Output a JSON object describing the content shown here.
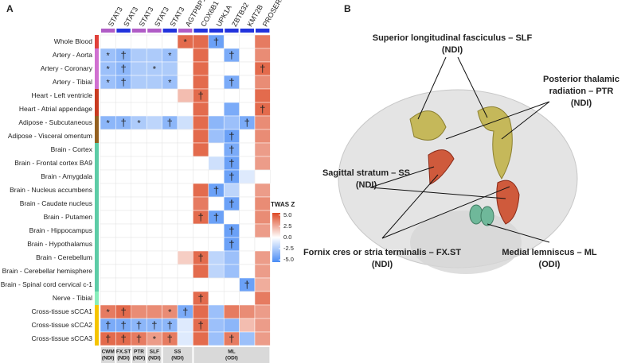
{
  "chart_data": {
    "type": "heatmap",
    "panel": "A",
    "columns": [
      {
        "name": "STAT3",
        "color": "#b05cc6"
      },
      {
        "name": "STAT3",
        "color": "#2233dd"
      },
      {
        "name": "STAT3",
        "color": "#b05cc6"
      },
      {
        "name": "STAT3",
        "color": "#b05cc6"
      },
      {
        "name": "STAT3",
        "color": "#2233dd"
      },
      {
        "name": "AGTPBP1",
        "color": "#b05cc6"
      },
      {
        "name": "COX6B1",
        "color": "#2233dd"
      },
      {
        "name": "UPK1A",
        "color": "#2233dd"
      },
      {
        "name": "ZBTB32",
        "color": "#2233dd"
      },
      {
        "name": "KMT2B",
        "color": "#2233dd"
      },
      {
        "name": "PROSER3",
        "color": "#2233dd"
      }
    ],
    "groups": [
      {
        "name": "CWM",
        "measure": "(NDI)",
        "span": 1
      },
      {
        "name": "FX.ST",
        "measure": "(NDI)",
        "span": 1
      },
      {
        "name": "PTR",
        "measure": "(NDI)",
        "span": 1
      },
      {
        "name": "SLF",
        "measure": "(NDI)",
        "span": 1
      },
      {
        "name": "SS",
        "measure": "(NDI)",
        "span": 2
      },
      {
        "name": "ML",
        "measure": "(ODI)",
        "span": 5
      }
    ],
    "rows": [
      {
        "name": "Whole Blood",
        "color": "#e0403a",
        "values": [
          null,
          null,
          null,
          null,
          null,
          4.5,
          4.5,
          -4.5,
          null,
          null,
          4.0
        ],
        "marks": [
          null,
          null,
          null,
          null,
          null,
          "*",
          null,
          "†",
          null,
          null,
          null
        ]
      },
      {
        "name": "Artery - Aorta",
        "color": "#d070d0",
        "values": [
          -3,
          -3.5,
          -2.5,
          -2.5,
          -3,
          null,
          4.5,
          null,
          -4,
          null,
          3.5
        ],
        "marks": [
          "*",
          "†",
          null,
          null,
          "*",
          null,
          null,
          null,
          "†",
          null,
          null
        ]
      },
      {
        "name": "Artery - Coronary",
        "color": "#d070d0",
        "values": [
          -3,
          -3.5,
          -2.5,
          -2.5,
          -2.5,
          null,
          4.5,
          null,
          null,
          null,
          4.5
        ],
        "marks": [
          "*",
          "†",
          null,
          "*",
          null,
          null,
          null,
          null,
          null,
          null,
          "†"
        ]
      },
      {
        "name": "Artery - Tibial",
        "color": "#d070d0",
        "values": [
          -3,
          -3.5,
          -2.5,
          -2.5,
          -3,
          null,
          4.5,
          null,
          -4,
          null,
          3.5
        ],
        "marks": [
          "*",
          "†",
          null,
          null,
          "*",
          null,
          null,
          null,
          "†",
          null,
          null
        ]
      },
      {
        "name": "Heart - Left ventricle",
        "color": "#c83a20",
        "values": [
          null,
          null,
          null,
          null,
          null,
          2,
          4.5,
          null,
          null,
          null,
          4.5
        ],
        "marks": [
          null,
          null,
          null,
          null,
          null,
          null,
          "†",
          null,
          null,
          null,
          null
        ]
      },
      {
        "name": "Heart - Atrial appendage",
        "color": "#c83a20",
        "values": [
          null,
          null,
          null,
          null,
          null,
          null,
          4.5,
          null,
          -4,
          null,
          4.5
        ],
        "marks": [
          null,
          null,
          null,
          null,
          null,
          null,
          null,
          null,
          null,
          null,
          "†"
        ]
      },
      {
        "name": "Adipose - Subcutaneous",
        "color": "#946020",
        "values": [
          -3.5,
          -3.5,
          -2.5,
          -2,
          -3.5,
          -1.5,
          4.5,
          -3.5,
          -3,
          -4,
          3.5
        ],
        "marks": [
          "*",
          "†",
          "*",
          null,
          "†",
          null,
          null,
          null,
          null,
          "†",
          null
        ]
      },
      {
        "name": "Adipose - Visceral omentum",
        "color": "#946020",
        "values": [
          null,
          null,
          null,
          null,
          null,
          null,
          4.5,
          -3,
          -4.5,
          null,
          3.5
        ],
        "marks": [
          null,
          null,
          null,
          null,
          null,
          null,
          null,
          null,
          "†",
          null,
          null
        ]
      },
      {
        "name": "Brain - Cortex",
        "color": "#5ccca6",
        "values": [
          null,
          null,
          null,
          null,
          null,
          null,
          4.5,
          null,
          -4,
          null,
          3
        ],
        "marks": [
          null,
          null,
          null,
          null,
          null,
          null,
          null,
          null,
          "†",
          null,
          null
        ]
      },
      {
        "name": "Brain - Frontal cortex BA9",
        "color": "#5ccca6",
        "values": [
          null,
          null,
          null,
          null,
          null,
          null,
          null,
          -1.5,
          -4.5,
          null,
          3
        ],
        "marks": [
          null,
          null,
          null,
          null,
          null,
          null,
          null,
          null,
          "†",
          null,
          null
        ]
      },
      {
        "name": "Brain - Amygdala",
        "color": "#5ccca6",
        "values": [
          null,
          null,
          null,
          null,
          null,
          null,
          null,
          null,
          -4.5,
          -1,
          null
        ],
        "marks": [
          null,
          null,
          null,
          null,
          null,
          null,
          null,
          null,
          "†",
          null,
          null
        ]
      },
      {
        "name": "Brain - Nucleus accumbens",
        "color": "#5ccca6",
        "values": [
          null,
          null,
          null,
          null,
          null,
          null,
          4.5,
          -4.5,
          -2,
          null,
          3
        ],
        "marks": [
          null,
          null,
          null,
          null,
          null,
          null,
          null,
          "†",
          null,
          null,
          null
        ]
      },
      {
        "name": "Brain - Caudate nucleus",
        "color": "#5ccca6",
        "values": [
          null,
          null,
          null,
          null,
          null,
          null,
          4,
          null,
          -4.5,
          null,
          3.5
        ],
        "marks": [
          null,
          null,
          null,
          null,
          null,
          null,
          null,
          null,
          "†",
          null,
          null
        ]
      },
      {
        "name": "Brain - Putamen",
        "color": "#5ccca6",
        "values": [
          null,
          null,
          null,
          null,
          null,
          null,
          4.5,
          -4.5,
          null,
          null,
          3.5
        ],
        "marks": [
          null,
          null,
          null,
          null,
          null,
          null,
          "†",
          "†",
          null,
          null,
          null
        ]
      },
      {
        "name": "Brain - Hippocampus",
        "color": "#5ccca6",
        "values": [
          null,
          null,
          null,
          null,
          null,
          null,
          null,
          null,
          -4.5,
          null,
          3
        ],
        "marks": [
          null,
          null,
          null,
          null,
          null,
          null,
          null,
          null,
          "†",
          null,
          null
        ]
      },
      {
        "name": "Brain - Hypothalamus",
        "color": "#5ccca6",
        "values": [
          null,
          null,
          null,
          null,
          null,
          null,
          null,
          null,
          -4.5,
          null,
          null
        ],
        "marks": [
          null,
          null,
          null,
          null,
          null,
          null,
          null,
          null,
          "†",
          null,
          null
        ]
      },
      {
        "name": "Brain - Cerebellum",
        "color": "#5ccca6",
        "values": [
          null,
          null,
          null,
          null,
          null,
          1.5,
          4.5,
          -2,
          -3,
          null,
          3
        ],
        "marks": [
          null,
          null,
          null,
          null,
          null,
          null,
          "†",
          null,
          null,
          null,
          null
        ]
      },
      {
        "name": "Brain - Cerebellar hemisphere",
        "color": "#5ccca6",
        "values": [
          null,
          null,
          null,
          null,
          null,
          null,
          4.5,
          -2,
          -3,
          null,
          3
        ],
        "marks": [
          null,
          null,
          null,
          null,
          null,
          null,
          null,
          null,
          null,
          null,
          null
        ]
      },
      {
        "name": "Brain - Spinal cord cervical c-1",
        "color": "#5ccca6",
        "values": [
          null,
          null,
          null,
          null,
          null,
          null,
          null,
          null,
          null,
          -4.5,
          2.5
        ],
        "marks": [
          null,
          null,
          null,
          null,
          null,
          null,
          null,
          null,
          null,
          "†",
          null
        ]
      },
      {
        "name": "Nerve - Tibial",
        "color": "#88eebb",
        "values": [
          null,
          null,
          null,
          null,
          null,
          null,
          4.5,
          null,
          null,
          null,
          4
        ],
        "marks": [
          null,
          null,
          null,
          null,
          null,
          null,
          "†",
          null,
          null,
          null,
          null
        ]
      },
      {
        "name": "Cross-tissue sCCA1",
        "color": "#f5c400",
        "values": [
          4,
          4.5,
          3.5,
          3.5,
          3.5,
          -4,
          4.5,
          -3,
          4,
          3.5,
          3
        ],
        "marks": [
          "*",
          "†",
          null,
          null,
          "*",
          "†",
          null,
          null,
          null,
          null,
          null
        ]
      },
      {
        "name": "Cross-tissue sCCA2",
        "color": "#f5c400",
        "values": [
          -4,
          -4,
          -3.5,
          -3.5,
          -3.5,
          -1,
          4.5,
          -3,
          -3.5,
          2,
          3
        ],
        "marks": [
          "†",
          "†",
          "†",
          "†",
          "†",
          null,
          "†",
          null,
          null,
          null,
          null
        ]
      },
      {
        "name": "Cross-tissue sCCA3",
        "color": "#f5c400",
        "values": [
          4.5,
          4.5,
          4,
          3,
          4,
          -1,
          4.5,
          -3,
          4,
          -3,
          3
        ],
        "marks": [
          "†",
          "†",
          "†",
          "*",
          "†",
          null,
          null,
          null,
          "†",
          null,
          null
        ]
      }
    ],
    "colorbar": {
      "title": "TWAS Z",
      "zlim": [
        -5.5,
        5.5
      ],
      "ticks": [
        {
          "value": 5,
          "label": "5.0"
        },
        {
          "value": 2.5,
          "label": "2.5"
        },
        {
          "value": 0,
          "label": "0.0"
        },
        {
          "value": -2.5,
          "label": "-2.5"
        },
        {
          "value": -5,
          "label": "-5.0"
        }
      ],
      "low_color": "#4a8cf5",
      "mid_color": "#ffffff",
      "high_color": "#dd4a26"
    }
  },
  "brain": {
    "panel": "B",
    "labels": [
      {
        "lines": [
          "Superior longitudinal fasciculus – SLF",
          "(NDI)"
        ]
      },
      {
        "lines": [
          "Posterior thalamic",
          "radiation – PTR",
          "(NDI)"
        ]
      },
      {
        "lines": [
          "Sagittal stratum – SS",
          "(NDI)"
        ]
      },
      {
        "lines": [
          "Fornix cres or  stria terminalis – FX.ST",
          "(NDI)"
        ]
      },
      {
        "lines": [
          "Medial lemniscus – ML",
          "(ODI)"
        ]
      }
    ]
  }
}
